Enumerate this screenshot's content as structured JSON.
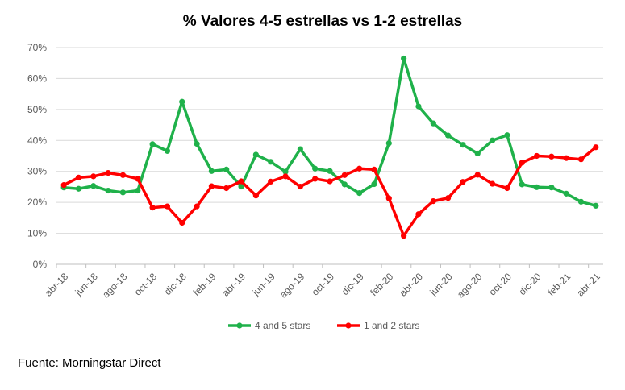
{
  "chart_data": {
    "type": "line",
    "title": "% Valores 4-5 estrellas vs 1-2 estrellas",
    "xlabel": "",
    "ylabel": "",
    "ylim": [
      0,
      70
    ],
    "y_ticks": [
      "0%",
      "10%",
      "20%",
      "30%",
      "40%",
      "50%",
      "60%",
      "70%"
    ],
    "y_tick_values": [
      0,
      10,
      20,
      30,
      40,
      50,
      60,
      70
    ],
    "x_tick_labels": [
      "abr-18",
      "jun-18",
      "ago-18",
      "oct-18",
      "dic-18",
      "feb-19",
      "abr-19",
      "jun-19",
      "ago-19",
      "oct-19",
      "dic-19",
      "feb-20",
      "abr-20",
      "jun-20",
      "ago-20",
      "oct-20",
      "dic-20",
      "feb-21",
      "abr-21"
    ],
    "categories": [
      "abr-18",
      "may-18",
      "jun-18",
      "jul-18",
      "ago-18",
      "sep-18",
      "oct-18",
      "nov-18",
      "dic-18",
      "ene-19",
      "feb-19",
      "mar-19",
      "abr-19",
      "may-19",
      "jun-19",
      "jul-19",
      "ago-19",
      "sep-19",
      "oct-19",
      "nov-19",
      "dic-19",
      "ene-20",
      "feb-20",
      "mar-20",
      "abr-20",
      "may-20",
      "jun-20",
      "jul-20",
      "ago-20",
      "sep-20",
      "oct-20",
      "nov-20",
      "dic-20",
      "ene-21",
      "feb-21",
      "mar-21",
      "abr-21"
    ],
    "grid": true,
    "legend_position": "bottom",
    "series": [
      {
        "name": "4 and 5 stars",
        "color": "#1fb14a",
        "values": [
          24.8,
          24.4,
          25.3,
          23.8,
          23.2,
          23.8,
          38.8,
          36.6,
          52.5,
          38.9,
          30.1,
          30.6,
          25.1,
          35.4,
          33.1,
          29.9,
          37.2,
          30.9,
          30.1,
          25.8,
          23.0,
          25.9,
          39.1,
          66.5,
          51.0,
          45.5,
          41.6,
          38.6,
          35.8,
          40.0,
          41.7,
          25.8,
          24.9,
          24.8,
          22.8,
          20.2,
          18.9
        ]
      },
      {
        "name": "1 and 2 stars",
        "color": "#ff0000",
        "values": [
          25.6,
          28.0,
          28.4,
          29.5,
          28.8,
          27.6,
          18.3,
          18.7,
          13.4,
          18.7,
          25.2,
          24.6,
          26.8,
          22.2,
          26.7,
          28.4,
          25.1,
          27.6,
          26.8,
          28.8,
          30.9,
          30.6,
          21.3,
          9.2,
          16.2,
          20.4,
          21.4,
          26.6,
          28.9,
          26.0,
          24.6,
          32.8,
          35.0,
          34.8,
          34.3,
          33.9,
          37.8
        ]
      }
    ]
  },
  "source": "Fuente: Morningstar Direct"
}
